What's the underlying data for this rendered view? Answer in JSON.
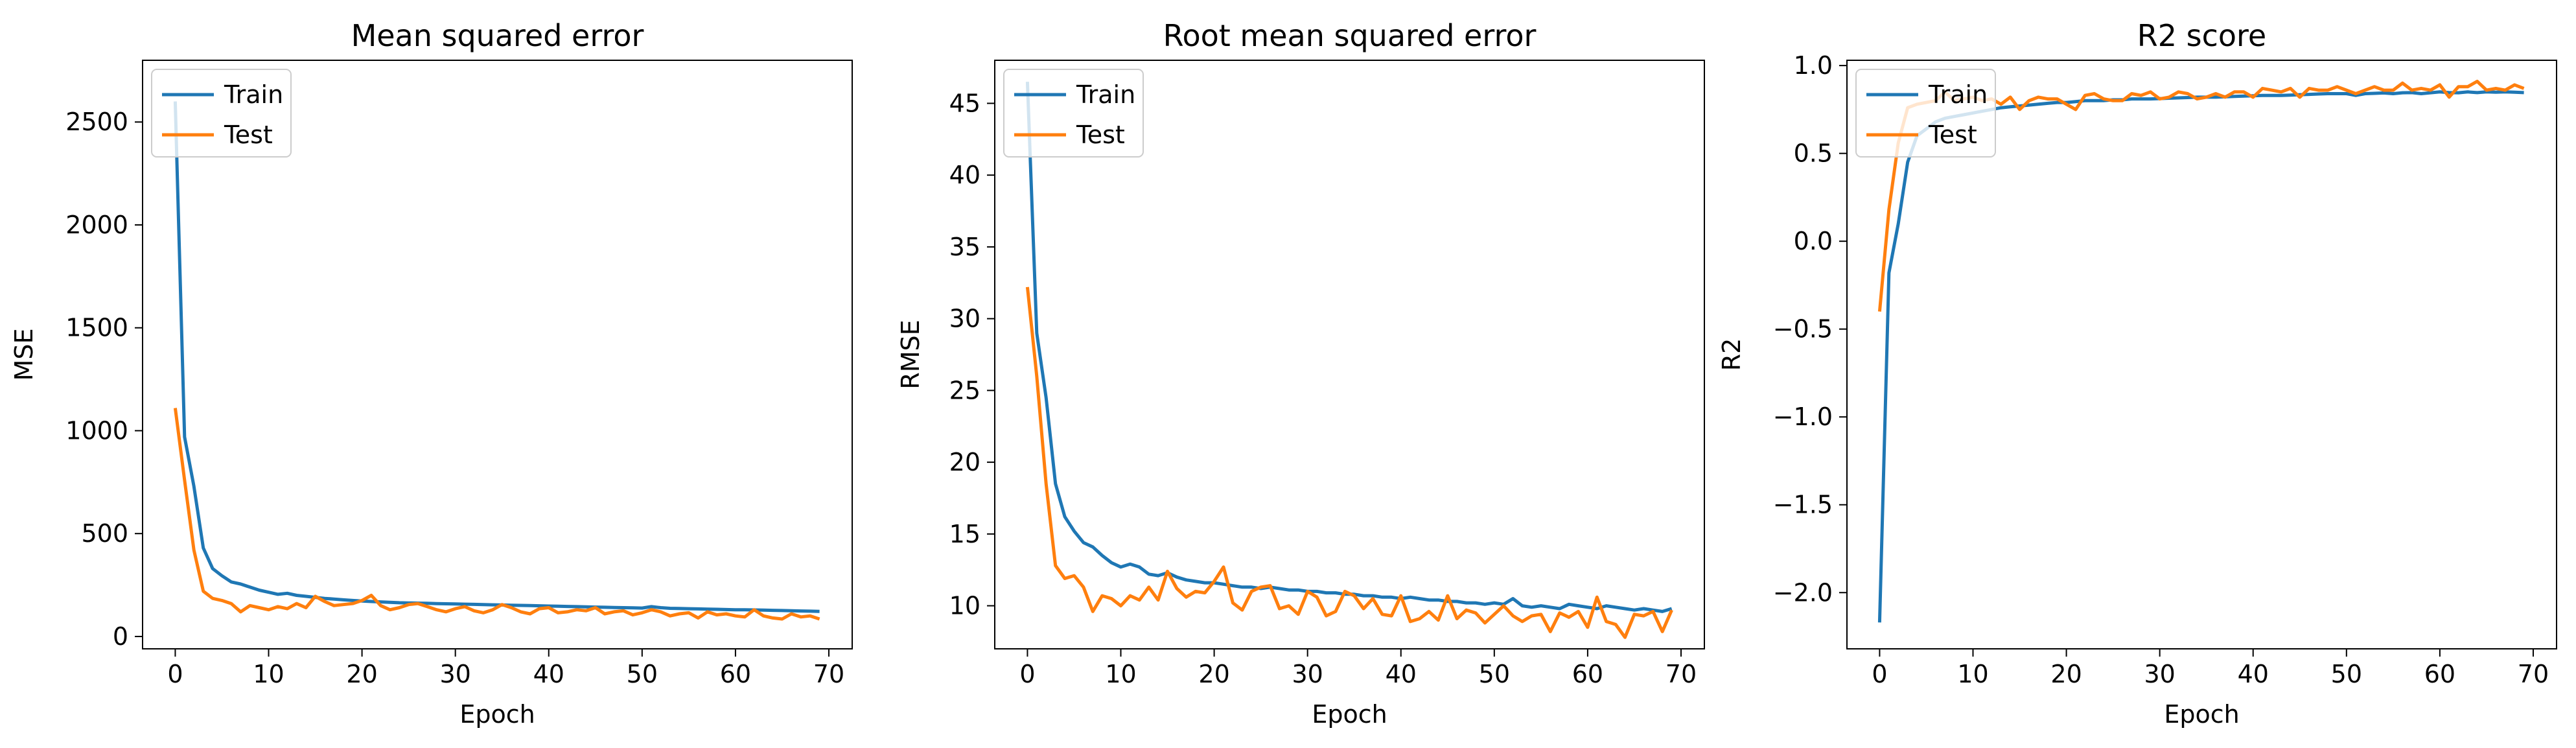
{
  "chart_data": [
    {
      "type": "line",
      "title": "Mean squared error",
      "xlabel": "Epoch",
      "ylabel": "MSE",
      "xlim": [
        -3.5,
        72.5
      ],
      "ylim": [
        -60,
        2800
      ],
      "xticks": [
        0,
        10,
        20,
        30,
        40,
        50,
        60,
        70
      ],
      "yticks": [
        0,
        500,
        1000,
        1500,
        2000,
        2500
      ],
      "tick_labels_y": [
        "0",
        "500",
        "1000",
        "1500",
        "2000",
        "2500"
      ],
      "legend": "top-left",
      "series": [
        {
          "name": "Train",
          "color": "#1f77b4",
          "values": [
            2600,
            970,
            730,
            430,
            330,
            295,
            265,
            255,
            240,
            225,
            215,
            205,
            210,
            200,
            195,
            190,
            185,
            182,
            178,
            175,
            172,
            170,
            168,
            166,
            164,
            163,
            162,
            161,
            160,
            159,
            158,
            157,
            156,
            155,
            154,
            153,
            152,
            151,
            150,
            149,
            148,
            147,
            146,
            145,
            144,
            143,
            142,
            141,
            140,
            139,
            138,
            145,
            140,
            137,
            136,
            135,
            134,
            133,
            132,
            131,
            130,
            130,
            129,
            128,
            127,
            126,
            125,
            124,
            123,
            122
          ]
        },
        {
          "name": "Test",
          "color": "#ff7f0e",
          "values": [
            1110,
            760,
            420,
            220,
            185,
            175,
            160,
            120,
            150,
            140,
            130,
            145,
            135,
            160,
            140,
            195,
            170,
            150,
            155,
            160,
            175,
            200,
            150,
            130,
            140,
            155,
            160,
            145,
            130,
            120,
            135,
            145,
            125,
            115,
            130,
            155,
            140,
            120,
            110,
            135,
            140,
            115,
            120,
            130,
            125,
            140,
            110,
            120,
            125,
            105,
            115,
            130,
            120,
            100,
            110,
            115,
            90,
            120,
            105,
            110,
            100,
            95,
            130,
            100,
            90,
            85,
            110,
            95,
            100,
            85
          ]
        }
      ]
    },
    {
      "type": "line",
      "title": "Root mean squared error",
      "xlabel": "Epoch",
      "ylabel": "RMSE",
      "xlim": [
        -3.5,
        72.5
      ],
      "ylim": [
        7,
        48
      ],
      "xticks": [
        0,
        10,
        20,
        30,
        40,
        50,
        60,
        70
      ],
      "yticks": [
        10,
        15,
        20,
        25,
        30,
        35,
        40,
        45
      ],
      "tick_labels_y": [
        "10",
        "15",
        "20",
        "25",
        "30",
        "35",
        "40",
        "45"
      ],
      "legend": "top-left",
      "series": [
        {
          "name": "Train",
          "color": "#1f77b4",
          "values": [
            46.5,
            29.0,
            24.5,
            18.5,
            16.2,
            15.2,
            14.4,
            14.1,
            13.5,
            13.0,
            12.7,
            12.9,
            12.7,
            12.2,
            12.1,
            12.3,
            12.0,
            11.8,
            11.7,
            11.6,
            11.6,
            11.5,
            11.4,
            11.3,
            11.3,
            11.2,
            11.3,
            11.2,
            11.1,
            11.1,
            11.0,
            11.0,
            10.9,
            10.9,
            10.8,
            10.8,
            10.7,
            10.7,
            10.6,
            10.6,
            10.5,
            10.6,
            10.5,
            10.4,
            10.4,
            10.3,
            10.3,
            10.2,
            10.2,
            10.1,
            10.2,
            10.1,
            10.5,
            10.0,
            9.9,
            10.0,
            9.9,
            9.8,
            10.1,
            10.0,
            9.9,
            9.8,
            10.0,
            9.9,
            9.8,
            9.7,
            9.8,
            9.7,
            9.6,
            9.8
          ]
        },
        {
          "name": "Test",
          "color": "#ff7f0e",
          "values": [
            32.2,
            26.0,
            18.5,
            12.8,
            11.9,
            12.1,
            11.3,
            9.6,
            10.7,
            10.5,
            10.0,
            10.7,
            10.4,
            11.3,
            10.4,
            12.4,
            11.2,
            10.6,
            11.0,
            10.9,
            11.7,
            12.7,
            10.2,
            9.7,
            11.0,
            11.3,
            11.4,
            9.8,
            10.0,
            9.4,
            11.0,
            10.6,
            9.3,
            9.6,
            11.0,
            10.7,
            9.8,
            10.5,
            9.4,
            9.3,
            10.7,
            8.9,
            9.1,
            9.6,
            9.0,
            10.7,
            9.1,
            9.7,
            9.5,
            8.8,
            9.4,
            10.0,
            9.3,
            8.9,
            9.3,
            9.4,
            8.2,
            9.5,
            9.2,
            9.6,
            8.5,
            10.6,
            8.9,
            8.7,
            7.8,
            9.4,
            9.3,
            9.6,
            8.2,
            9.7
          ]
        }
      ]
    },
    {
      "type": "line",
      "title": "R2 score",
      "xlabel": "Epoch",
      "ylabel": "R2",
      "xlim": [
        -3.5,
        72.5
      ],
      "ylim": [
        -2.32,
        1.03
      ],
      "xticks": [
        0,
        10,
        20,
        30,
        40,
        50,
        60,
        70
      ],
      "yticks": [
        -2.0,
        -1.5,
        -1.0,
        -0.5,
        0.0,
        0.5,
        1.0
      ],
      "tick_labels_y": [
        "−2.0",
        "−1.5",
        "−1.0",
        "−0.5",
        "0.0",
        "0.5",
        "1.0"
      ],
      "legend": "top-left",
      "series": [
        {
          "name": "Train",
          "color": "#1f77b4",
          "values": [
            -2.17,
            -0.18,
            0.1,
            0.45,
            0.6,
            0.64,
            0.68,
            0.7,
            0.71,
            0.72,
            0.73,
            0.74,
            0.75,
            0.76,
            0.765,
            0.77,
            0.775,
            0.78,
            0.785,
            0.79,
            0.79,
            0.795,
            0.8,
            0.8,
            0.8,
            0.805,
            0.805,
            0.81,
            0.81,
            0.81,
            0.812,
            0.814,
            0.816,
            0.818,
            0.82,
            0.82,
            0.82,
            0.822,
            0.824,
            0.826,
            0.828,
            0.83,
            0.83,
            0.83,
            0.832,
            0.834,
            0.836,
            0.838,
            0.84,
            0.84,
            0.84,
            0.83,
            0.84,
            0.842,
            0.844,
            0.84,
            0.845,
            0.846,
            0.84,
            0.845,
            0.85,
            0.846,
            0.845,
            0.85,
            0.846,
            0.85,
            0.848,
            0.85,
            0.848,
            0.846
          ]
        },
        {
          "name": "Test",
          "color": "#ff7f0e",
          "values": [
            -0.4,
            0.18,
            0.56,
            0.76,
            0.78,
            0.79,
            0.8,
            0.85,
            0.8,
            0.81,
            0.82,
            0.8,
            0.81,
            0.78,
            0.82,
            0.75,
            0.8,
            0.82,
            0.81,
            0.81,
            0.78,
            0.75,
            0.83,
            0.84,
            0.81,
            0.8,
            0.8,
            0.84,
            0.83,
            0.85,
            0.81,
            0.82,
            0.85,
            0.84,
            0.81,
            0.82,
            0.84,
            0.82,
            0.85,
            0.85,
            0.82,
            0.87,
            0.86,
            0.85,
            0.87,
            0.82,
            0.87,
            0.86,
            0.86,
            0.88,
            0.86,
            0.84,
            0.86,
            0.88,
            0.86,
            0.86,
            0.9,
            0.86,
            0.87,
            0.86,
            0.89,
            0.82,
            0.88,
            0.88,
            0.91,
            0.86,
            0.87,
            0.86,
            0.89,
            0.87
          ]
        }
      ]
    }
  ]
}
